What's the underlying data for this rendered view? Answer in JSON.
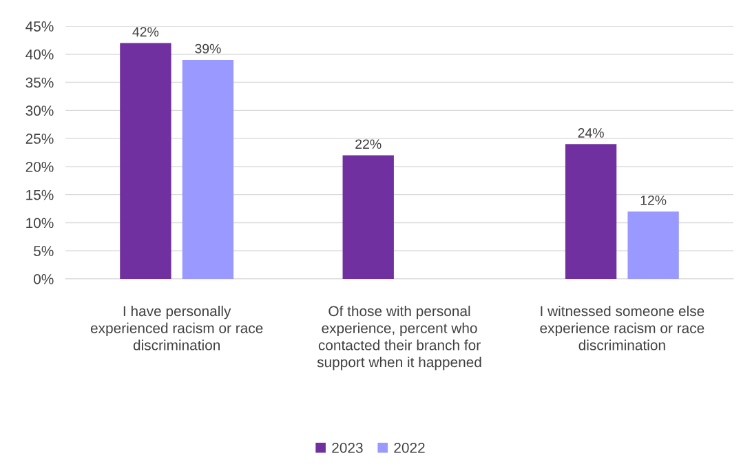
{
  "chart_data": {
    "type": "bar",
    "categories": [
      "I have personally experienced racism or race discrimination",
      "Of those with personal experience, percent who contacted their branch for support when it happened",
      "I witnessed someone else experience racism or race discrimination"
    ],
    "series": [
      {
        "name": "2023",
        "color": "#7030a0",
        "values": [
          42,
          22,
          24
        ],
        "value_labels": [
          "42%",
          "22%",
          "24%"
        ]
      },
      {
        "name": "2022",
        "color": "#9999ff",
        "values": [
          39,
          null,
          12
        ],
        "value_labels": [
          "39%",
          null,
          "12%"
        ]
      }
    ],
    "ylim": [
      0,
      45
    ],
    "yticks": [
      {
        "value": 0,
        "label": "0%"
      },
      {
        "value": 5,
        "label": "5%"
      },
      {
        "value": 10,
        "label": "10%"
      },
      {
        "value": 15,
        "label": "15%"
      },
      {
        "value": 20,
        "label": "20%"
      },
      {
        "value": 25,
        "label": "25%"
      },
      {
        "value": 30,
        "label": "30%"
      },
      {
        "value": 35,
        "label": "35%"
      },
      {
        "value": 40,
        "label": "40%"
      },
      {
        "value": 45,
        "label": "45%"
      }
    ],
    "grid": "y",
    "legend": "bottom"
  }
}
